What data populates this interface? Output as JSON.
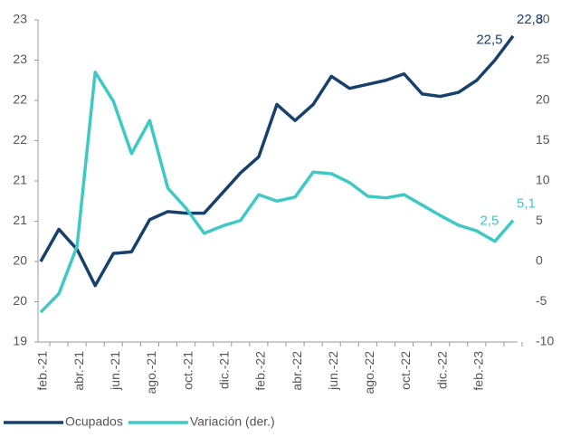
{
  "chart_data": {
    "type": "line",
    "categories": [
      "feb.-21",
      null,
      "abr.-21",
      null,
      "jun.-21",
      null,
      "ago.-21",
      null,
      "oct.-21",
      null,
      "dic.-21",
      null,
      "feb.-22",
      null,
      "abr.-22",
      null,
      "jun.-22",
      null,
      "ago.-22",
      null,
      "oct.-22",
      null,
      "dic.-22",
      null,
      "feb.-23",
      null,
      null
    ],
    "series": [
      {
        "name": "Ocupados",
        "color": "#17406d",
        "values": [
          20.0,
          20.4,
          20.15,
          19.7,
          20.1,
          20.12,
          20.52,
          20.62,
          20.6,
          20.6,
          20.85,
          21.1,
          21.3,
          21.95,
          21.75,
          21.95,
          22.3,
          22.15,
          22.2,
          22.25,
          22.33,
          22.08,
          22.05,
          22.1,
          22.25,
          22.5,
          22.8
        ],
        "value_labels": [
          null,
          null,
          null,
          null,
          null,
          null,
          null,
          null,
          null,
          null,
          null,
          null,
          null,
          null,
          null,
          null,
          null,
          null,
          null,
          null,
          null,
          null,
          null,
          null,
          null,
          "22,5",
          "22,8"
        ]
      },
      {
        "name": "Variación (der.)",
        "color": "#3ec9c5",
        "axis": "y2",
        "values": [
          -6.3,
          -4,
          1.9,
          23.5,
          19.9,
          13.4,
          17.5,
          9.1,
          6.6,
          3.5,
          4.4,
          5.1,
          8.3,
          7.5,
          8.0,
          11.1,
          10.9,
          9.8,
          8.1,
          7.9,
          8.3,
          7.0,
          5.7,
          4.5,
          3.8,
          2.5,
          5.1
        ],
        "value_labels": [
          null,
          null,
          null,
          null,
          null,
          null,
          null,
          null,
          null,
          null,
          null,
          null,
          null,
          null,
          null,
          null,
          null,
          null,
          null,
          null,
          null,
          null,
          null,
          null,
          null,
          "2,5",
          "5,1"
        ]
      }
    ],
    "ylim": [
      19,
      23
    ],
    "yticks": [
      19,
      {
        "value": 19.5,
        "label": "20"
      },
      20,
      {
        "value": 20.5,
        "label": "21"
      },
      21,
      {
        "value": 21.5,
        "label": "22"
      },
      22,
      {
        "value": 22.5,
        "label": "23"
      },
      23
    ],
    "y2lim": [
      -10,
      30
    ],
    "y2ticks": [
      -10,
      -5,
      0,
      5,
      10,
      15,
      20,
      25,
      30
    ],
    "legend": "bottom-left"
  }
}
